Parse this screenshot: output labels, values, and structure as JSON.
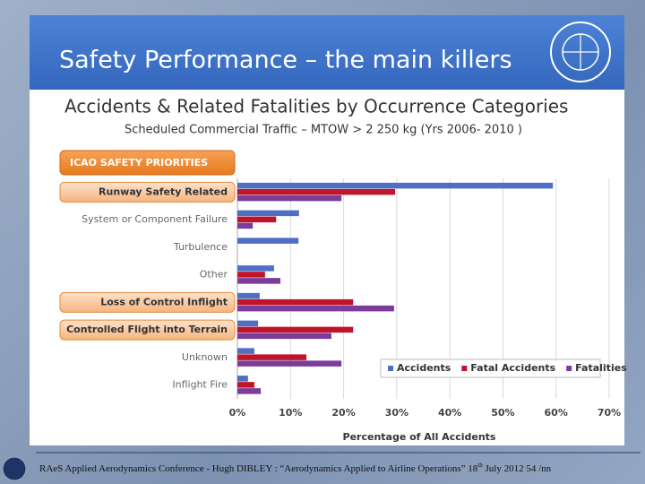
{
  "slide": {
    "title": "Safety Performance – the main killers",
    "footer": {
      "text": "RAeS Applied Aerodynamics Conference - Hugh DIBLEY : “Aerodynamics Applied to Airline Operations” 18",
      "sup": "th",
      "rest": " July 2012 54 /nn"
    }
  },
  "chart_data": {
    "type": "bar",
    "orientation": "horizontal",
    "title": "Accidents & Related Fatalities by Occurrence Categories",
    "subtitle": "Scheduled Commercial Traffic – MTOW > 2 250 kg (Yrs 2006- 2010 )",
    "priorities_label": "ICAO SAFETY PRIORITIES",
    "xlabel": "Percentage of All Accidents",
    "categories": [
      "Runway Safety Related",
      "System or Component Failure",
      "Turbulence",
      "Other",
      "Loss of Control Inflight",
      "Controlled Flight into Terrain",
      "Unknown",
      "Inflight Fire"
    ],
    "highlighted": [
      true,
      false,
      false,
      false,
      true,
      true,
      false,
      false
    ],
    "series": [
      {
        "name": "Accidents",
        "color": "#4f6fc4",
        "values": [
          59.4,
          11.6,
          11.5,
          6.9,
          4.2,
          3.9,
          3.2,
          2.0
        ]
      },
      {
        "name": "Fatal Accidents",
        "color": "#c0142a",
        "values": [
          29.7,
          7.3,
          0,
          5.2,
          21.8,
          21.8,
          13.0,
          3.2
        ]
      },
      {
        "name": "Fatalities",
        "color": "#7b3c9a",
        "values": [
          19.6,
          2.9,
          0,
          8.1,
          29.5,
          17.7,
          19.6,
          4.4
        ]
      }
    ],
    "xlim": [
      0,
      70
    ],
    "xticks": [
      {
        "value": 0,
        "label": "0%"
      },
      {
        "value": 10,
        "label": "10%"
      },
      {
        "value": 20,
        "label": "20%"
      },
      {
        "value": 30,
        "label": "30%"
      },
      {
        "value": 40,
        "label": "40%"
      },
      {
        "value": 50,
        "label": "50%"
      },
      {
        "value": 60,
        "label": "60%"
      },
      {
        "value": 70,
        "label": "70%"
      }
    ],
    "grid": true,
    "legend": "lower right"
  }
}
